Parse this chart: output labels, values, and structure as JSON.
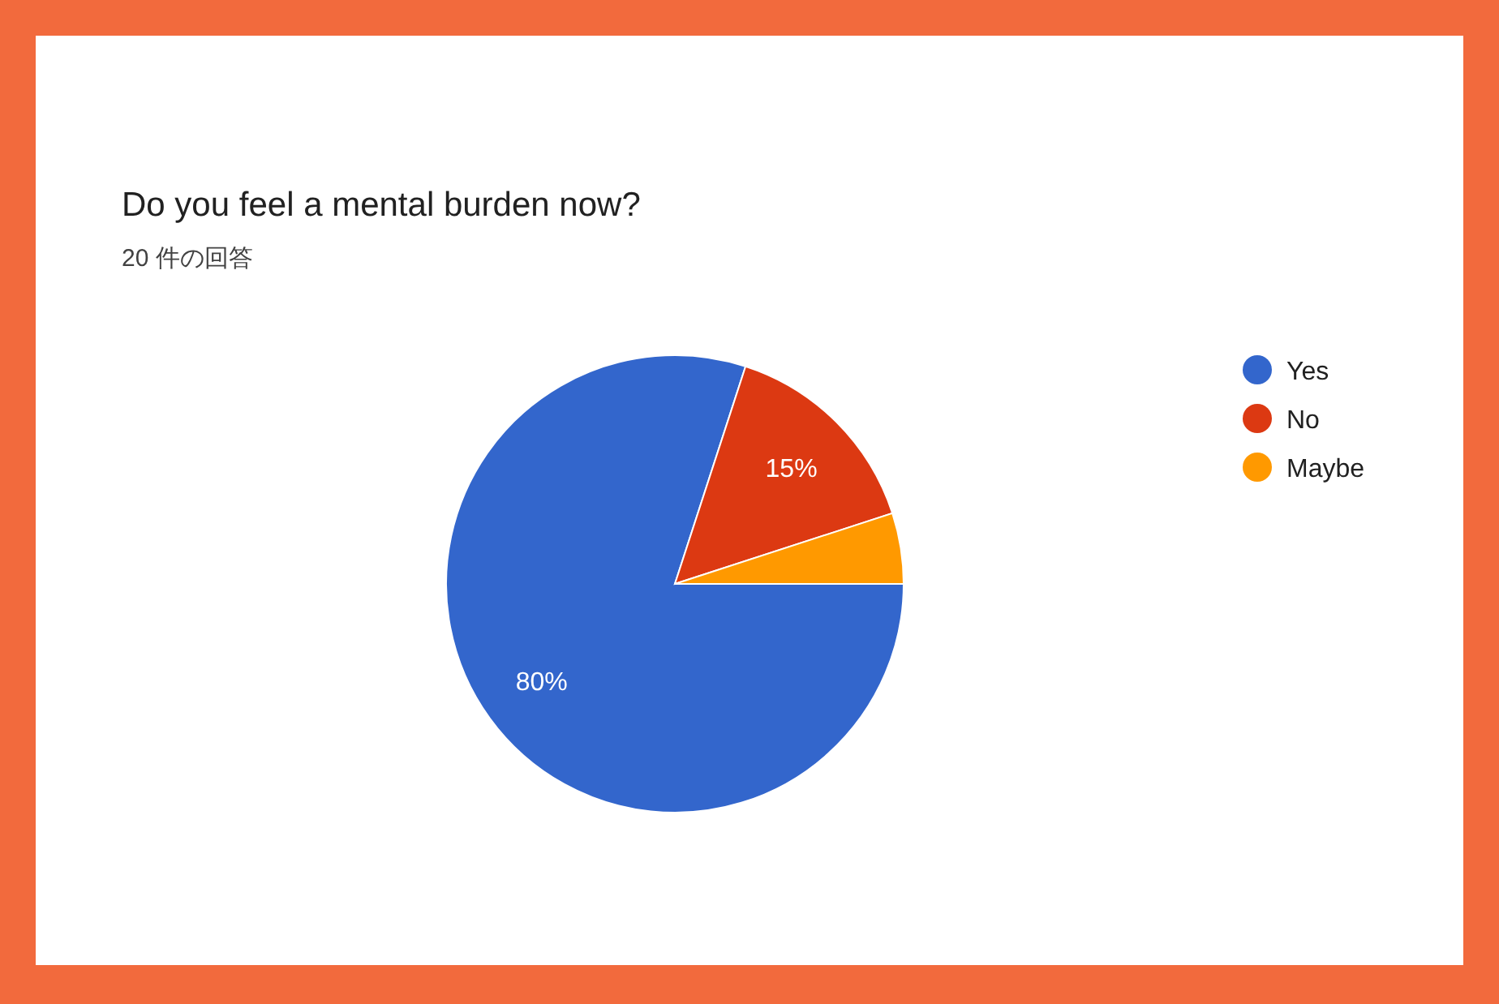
{
  "chart_data": {
    "type": "pie",
    "title": "Do you feel a mental burden now?",
    "subtitle": "20 件の回答",
    "categories": [
      "Yes",
      "No",
      "Maybe"
    ],
    "values": [
      80,
      15,
      5
    ],
    "colors": [
      "#3366cc",
      "#dc3912",
      "#ff9900"
    ],
    "value_labels": [
      "80%",
      "15%",
      null
    ],
    "legend": "right"
  }
}
